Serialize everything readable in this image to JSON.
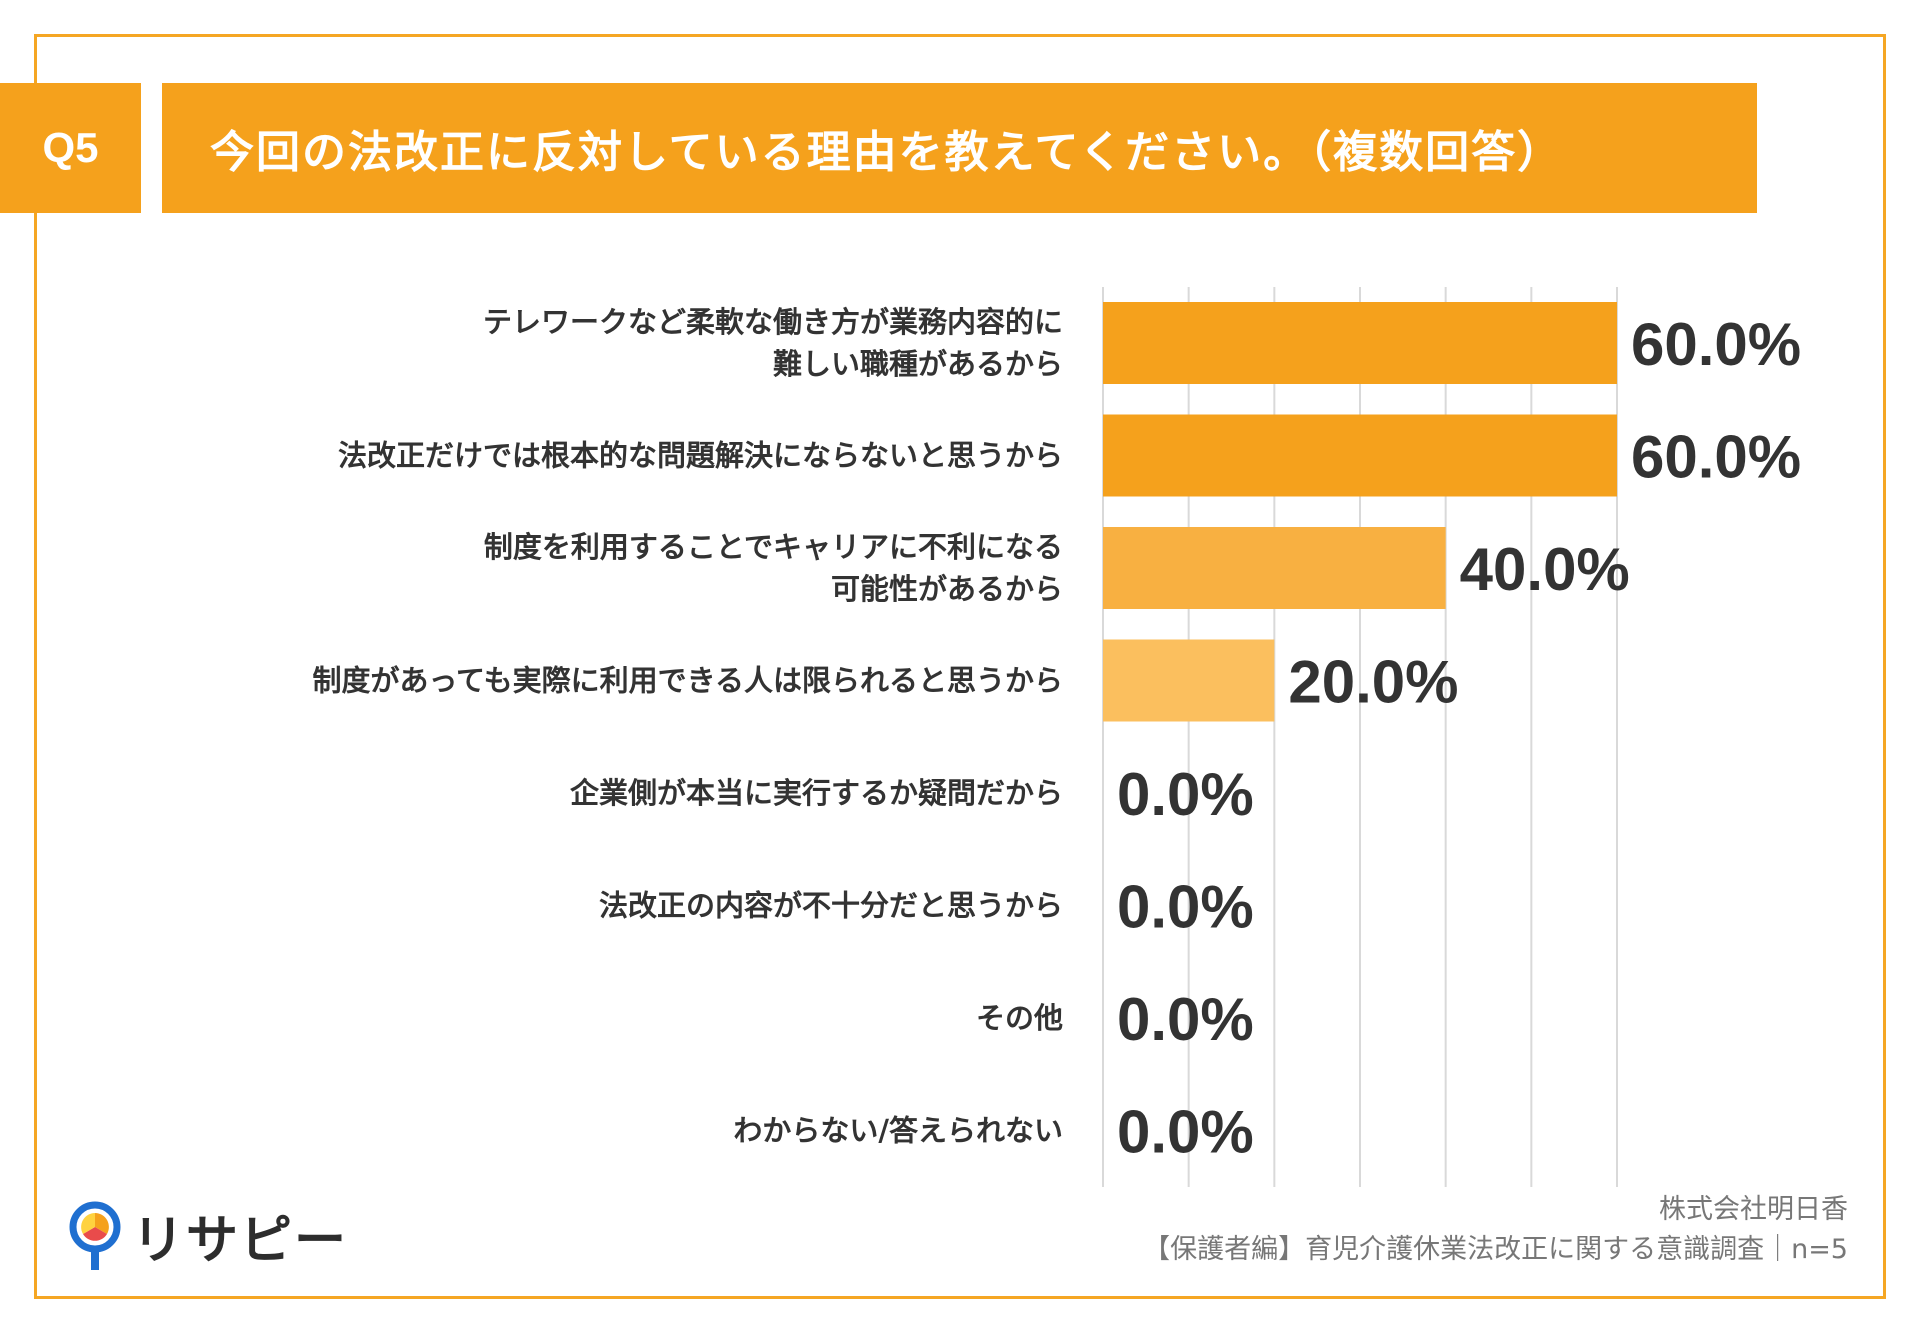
{
  "header": {
    "question_number": "Q5",
    "title": "今回の法改正に反対している理由を教えてください。（複数回答）"
  },
  "chart_data": {
    "type": "bar",
    "orientation": "horizontal",
    "categories": [
      "テレワークなど柔軟な働き方が業務内容的に\n難しい職種があるから",
      "法改正だけでは根本的な問題解決にならないと思うから",
      "制度を利用することでキャリアに不利になる\n可能性があるから",
      "制度があっても実際に利用できる人は限られると思うから",
      "企業側が本当に実行するか疑問だから",
      "法改正の内容が不十分だと思うから",
      "その他",
      "わからない/答えられない"
    ],
    "values": [
      60.0,
      60.0,
      40.0,
      20.0,
      0.0,
      0.0,
      0.0,
      0.0
    ],
    "value_labels": [
      "60.0%",
      "60.0%",
      "40.0%",
      "20.0%",
      "0.0%",
      "0.0%",
      "0.0%",
      "0.0%"
    ],
    "xlim": [
      0,
      60
    ],
    "grid": true,
    "colors": {
      "60.0": "#f5a11c",
      "40.0": "#f8b041",
      "20.0": "#fbbf5e"
    }
  },
  "footer": {
    "company": "株式会社明日香",
    "survey": "【保護者編】育児介護休業法改正に関する意識調査｜n=5"
  },
  "logo": {
    "text": "リサピー",
    "icon": "risapy-pin-logo-icon"
  },
  "accent_color": "#f5a11c",
  "frame_color": "#f5a623"
}
